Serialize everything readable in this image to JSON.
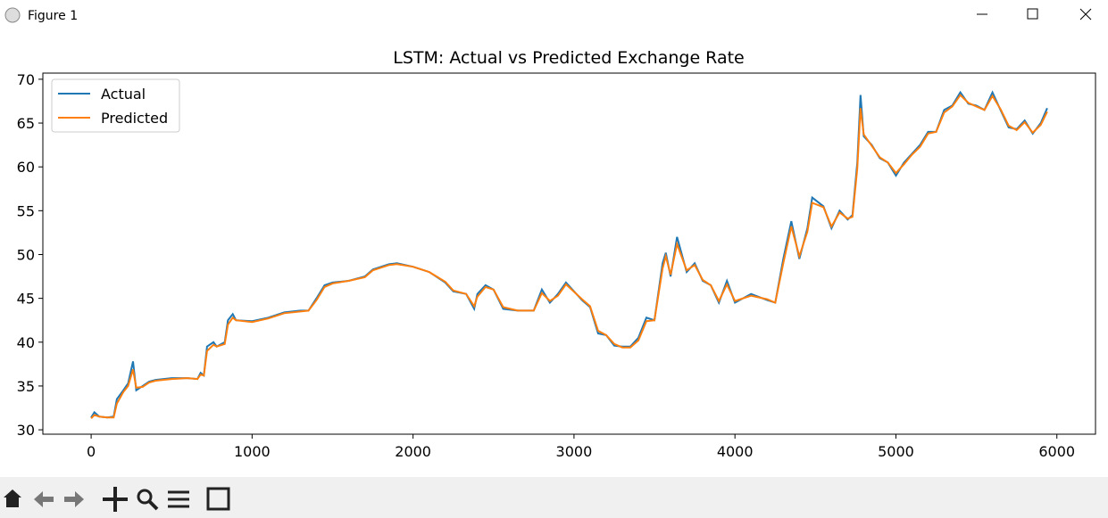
{
  "window": {
    "title": "Figure 1"
  },
  "chart_data": {
    "type": "line",
    "title": "LSTM: Actual vs Predicted Exchange Rate",
    "x": [
      0,
      20,
      50,
      100,
      140,
      160,
      200,
      230,
      260,
      280,
      320,
      360,
      400,
      500,
      600,
      660,
      680,
      700,
      720,
      760,
      780,
      830,
      850,
      880,
      900,
      1000,
      1100,
      1200,
      1300,
      1350,
      1400,
      1450,
      1500,
      1600,
      1700,
      1750,
      1850,
      1900,
      2000,
      2100,
      2200,
      2250,
      2330,
      2380,
      2400,
      2450,
      2500,
      2560,
      2650,
      2750,
      2800,
      2850,
      2900,
      2950,
      3050,
      3100,
      3150,
      3200,
      3250,
      3300,
      3350,
      3400,
      3450,
      3500,
      3550,
      3570,
      3600,
      3640,
      3700,
      3750,
      3800,
      3850,
      3900,
      3950,
      4000,
      4100,
      4200,
      4250,
      4300,
      4350,
      4400,
      4450,
      4480,
      4550,
      4600,
      4650,
      4700,
      4730,
      4760,
      4780,
      4800,
      4850,
      4900,
      4950,
      5000,
      5050,
      5100,
      5150,
      5200,
      5250,
      5300,
      5350,
      5400,
      5450,
      5500,
      5550,
      5600,
      5650,
      5700,
      5750,
      5800,
      5850,
      5900,
      5940
    ],
    "series": [
      {
        "name": "Actual",
        "color": "#1f77b4",
        "values": [
          31.4,
          32.0,
          31.5,
          31.4,
          31.5,
          33.5,
          34.5,
          35.3,
          37.8,
          34.5,
          35.0,
          35.5,
          35.7,
          35.9,
          35.9,
          35.8,
          36.5,
          36.2,
          39.5,
          40.0,
          39.5,
          40.0,
          42.5,
          43.2,
          42.5,
          42.4,
          42.8,
          43.4,
          43.6,
          43.6,
          45.0,
          46.5,
          46.8,
          47.0,
          47.5,
          48.3,
          48.9,
          49.0,
          48.6,
          48.0,
          46.8,
          45.8,
          45.5,
          43.8,
          45.5,
          46.5,
          46.0,
          43.8,
          43.6,
          43.6,
          46.0,
          44.5,
          45.5,
          46.8,
          44.8,
          44.0,
          41.0,
          40.8,
          39.6,
          39.5,
          39.5,
          40.5,
          42.8,
          42.5,
          49.0,
          50.2,
          47.5,
          52.0,
          48.0,
          49.0,
          47.0,
          46.5,
          44.5,
          47.0,
          44.5,
          45.5,
          44.8,
          44.5,
          49.5,
          53.8,
          49.5,
          53.0,
          56.5,
          55.5,
          53.0,
          55.0,
          54.0,
          54.5,
          60.5,
          68.2,
          63.5,
          62.5,
          61.0,
          60.5,
          59.0,
          60.5,
          61.5,
          62.5,
          64.0,
          64.0,
          66.5,
          67.0,
          68.5,
          67.2,
          67.0,
          66.5,
          68.5,
          66.5,
          64.5,
          64.3,
          65.3,
          63.8,
          65.0,
          66.7
        ]
      },
      {
        "name": "Predicted",
        "color": "#ff7f0e",
        "values": [
          31.3,
          31.7,
          31.5,
          31.4,
          31.4,
          33.0,
          34.3,
          35.0,
          36.9,
          34.8,
          34.9,
          35.4,
          35.6,
          35.8,
          35.9,
          35.8,
          36.3,
          36.2,
          39.0,
          39.7,
          39.5,
          39.8,
          42.0,
          42.8,
          42.5,
          42.3,
          42.7,
          43.3,
          43.5,
          43.6,
          44.8,
          46.3,
          46.7,
          47.0,
          47.4,
          48.2,
          48.8,
          48.9,
          48.6,
          48.0,
          46.9,
          45.9,
          45.5,
          44.1,
          45.2,
          46.3,
          46.0,
          44.0,
          43.6,
          43.6,
          45.6,
          44.7,
          45.3,
          46.6,
          44.9,
          44.1,
          41.3,
          40.8,
          39.8,
          39.4,
          39.4,
          40.2,
          42.4,
          42.5,
          48.4,
          49.8,
          47.7,
          51.2,
          48.2,
          48.8,
          47.1,
          46.5,
          44.7,
          46.6,
          44.7,
          45.3,
          44.9,
          44.5,
          49.0,
          53.2,
          49.8,
          52.6,
          55.9,
          55.4,
          53.2,
          54.8,
          54.1,
          54.3,
          59.8,
          66.7,
          63.7,
          62.4,
          61.1,
          60.5,
          59.3,
          60.3,
          61.4,
          62.3,
          63.8,
          64.0,
          66.2,
          66.9,
          68.2,
          67.3,
          66.9,
          66.5,
          68.1,
          66.6,
          64.7,
          64.2,
          65.1,
          63.9,
          64.8,
          66.3
        ]
      }
    ],
    "xlim": [
      -300,
      6240
    ],
    "ylim": [
      29.5,
      70.7
    ],
    "xticks": [
      0,
      1000,
      2000,
      3000,
      4000,
      5000,
      6000
    ],
    "yticks": [
      30,
      35,
      40,
      45,
      50,
      55,
      60,
      65,
      70
    ],
    "legend": "upper left"
  }
}
